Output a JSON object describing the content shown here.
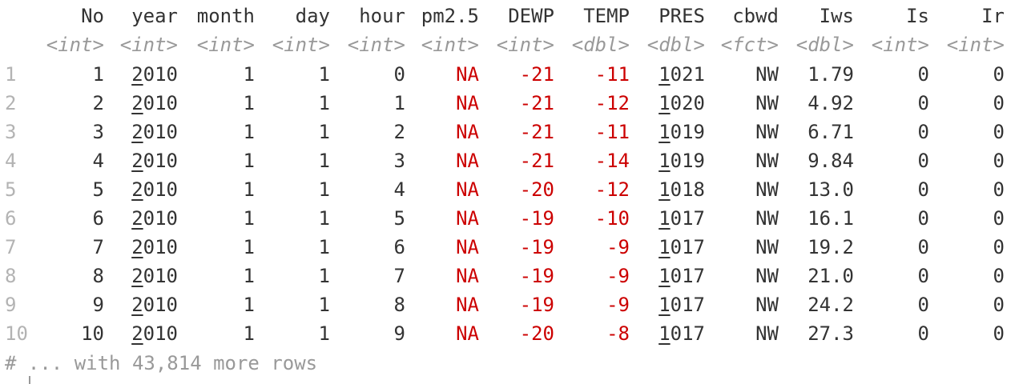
{
  "columns": [
    {
      "name": "No",
      "type": "<int>"
    },
    {
      "name": "year",
      "type": "<int>"
    },
    {
      "name": "month",
      "type": "<int>"
    },
    {
      "name": "day",
      "type": "<int>"
    },
    {
      "name": "hour",
      "type": "<int>"
    },
    {
      "name": "pm2.5",
      "type": "<int>"
    },
    {
      "name": "DEWP",
      "type": "<int>"
    },
    {
      "name": "TEMP",
      "type": "<dbl>"
    },
    {
      "name": "PRES",
      "type": "<dbl>"
    },
    {
      "name": "cbwd",
      "type": "<fct>"
    },
    {
      "name": "Iws",
      "type": "<dbl>"
    },
    {
      "name": "Is",
      "type": "<int>"
    },
    {
      "name": "Ir",
      "type": "<int>"
    }
  ],
  "rows": [
    {
      "n": "1",
      "cells": [
        "1",
        "2010",
        "1",
        "1",
        "0",
        "NA",
        "-21",
        "-11",
        "1021",
        "NW",
        "1.79",
        "0",
        "0"
      ]
    },
    {
      "n": "2",
      "cells": [
        "2",
        "2010",
        "1",
        "1",
        "1",
        "NA",
        "-21",
        "-12",
        "1020",
        "NW",
        "4.92",
        "0",
        "0"
      ]
    },
    {
      "n": "3",
      "cells": [
        "3",
        "2010",
        "1",
        "1",
        "2",
        "NA",
        "-21",
        "-11",
        "1019",
        "NW",
        "6.71",
        "0",
        "0"
      ]
    },
    {
      "n": "4",
      "cells": [
        "4",
        "2010",
        "1",
        "1",
        "3",
        "NA",
        "-21",
        "-14",
        "1019",
        "NW",
        "9.84",
        "0",
        "0"
      ]
    },
    {
      "n": "5",
      "cells": [
        "5",
        "2010",
        "1",
        "1",
        "4",
        "NA",
        "-20",
        "-12",
        "1018",
        "NW",
        "13.0",
        "0",
        "0"
      ]
    },
    {
      "n": "6",
      "cells": [
        "6",
        "2010",
        "1",
        "1",
        "5",
        "NA",
        "-19",
        "-10",
        "1017",
        "NW",
        "16.1",
        "0",
        "0"
      ]
    },
    {
      "n": "7",
      "cells": [
        "7",
        "2010",
        "1",
        "1",
        "6",
        "NA",
        "-19",
        "-9",
        "1017",
        "NW",
        "19.2",
        "0",
        "0"
      ]
    },
    {
      "n": "8",
      "cells": [
        "8",
        "2010",
        "1",
        "1",
        "7",
        "NA",
        "-19",
        "-9",
        "1017",
        "NW",
        "21.0",
        "0",
        "0"
      ]
    },
    {
      "n": "9",
      "cells": [
        "9",
        "2010",
        "1",
        "1",
        "8",
        "NA",
        "-19",
        "-9",
        "1017",
        "NW",
        "24.2",
        "0",
        "0"
      ]
    },
    {
      "n": "10",
      "cells": [
        "10",
        "2010",
        "1",
        "1",
        "9",
        "NA",
        "-20",
        "-8",
        "1017",
        "NW",
        "27.3",
        "0",
        "0"
      ]
    }
  ],
  "footer": "# ... with 43,814 more rows",
  "colors": {
    "text": "#333333",
    "type": "#999999",
    "rownum": "#b3b3b3",
    "negative": "#cc0000",
    "na": "#cc0000"
  }
}
